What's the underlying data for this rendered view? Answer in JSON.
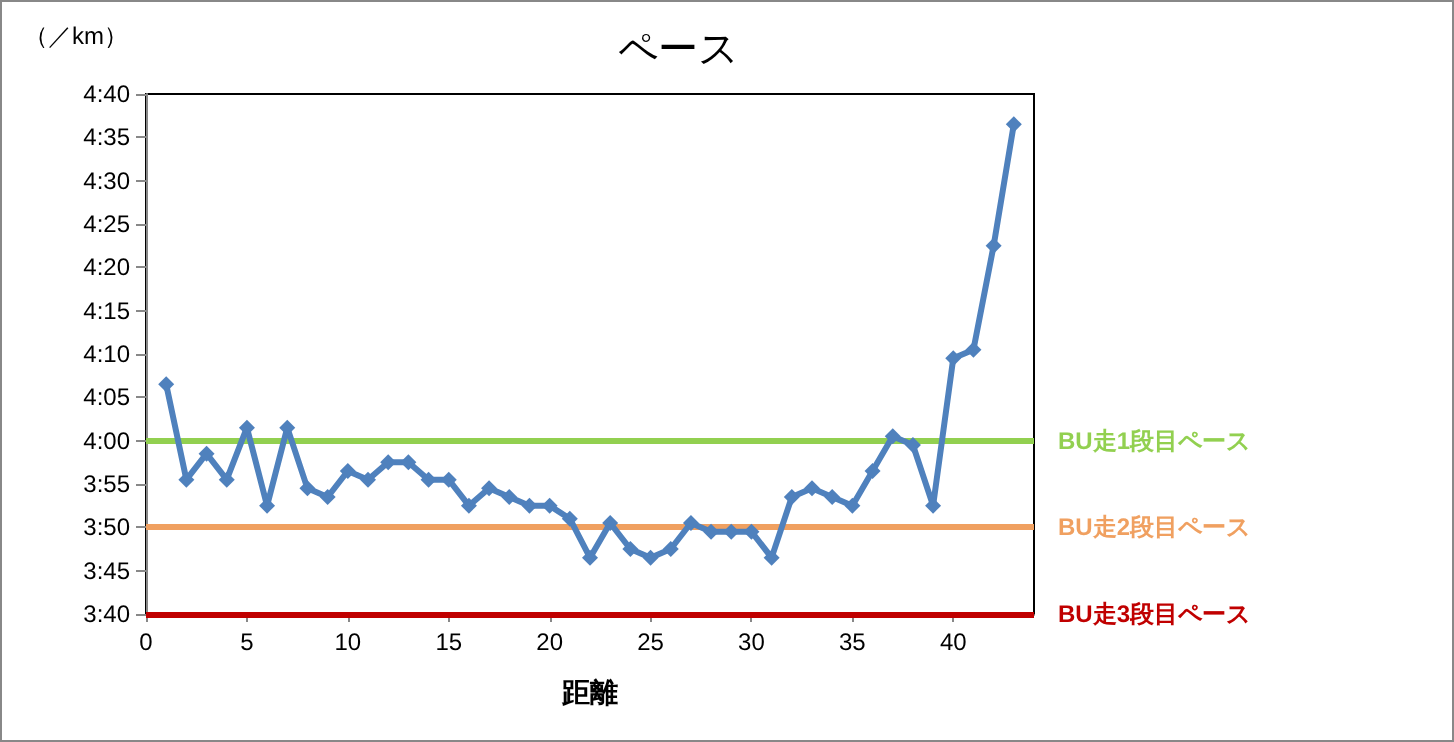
{
  "chart_data": {
    "type": "line",
    "title": "ペース",
    "xlabel": "距離",
    "ylabel": "（／km）",
    "x": [
      1,
      2,
      3,
      4,
      5,
      6,
      7,
      8,
      9,
      10,
      11,
      12,
      13,
      14,
      15,
      16,
      17,
      18,
      19,
      20,
      21,
      22,
      23,
      24,
      25,
      26,
      27,
      28,
      29,
      30,
      31,
      32,
      33,
      34,
      35,
      36,
      37,
      38,
      39,
      40,
      41,
      42,
      43
    ],
    "series": [
      {
        "color": "#4f81bd",
        "values": [
          246.5,
          235.5,
          238.5,
          235.5,
          241.5,
          232.5,
          241.5,
          234.5,
          233.5,
          236.5,
          235.5,
          237.5,
          237.5,
          235.5,
          235.5,
          232.5,
          234.5,
          233.5,
          232.5,
          232.5,
          231,
          226.5,
          230.5,
          227.5,
          226.5,
          227.5,
          230.5,
          229.5,
          229.5,
          229.5,
          226.5,
          233.5,
          234.5,
          233.5,
          232.5,
          236.5,
          240.5,
          239.5,
          232.5,
          249.5,
          250.5,
          262.5,
          276.5
        ]
      }
    ],
    "xlim": [
      0,
      44
    ],
    "xticks": [
      0,
      5,
      10,
      15,
      20,
      25,
      30,
      35,
      40
    ],
    "ylim": [
      220,
      280
    ],
    "yticks": [
      {
        "value": 220,
        "label": "3:40"
      },
      {
        "value": 225,
        "label": "3:45"
      },
      {
        "value": 230,
        "label": "3:50"
      },
      {
        "value": 235,
        "label": "3:55"
      },
      {
        "value": 240,
        "label": "4:00"
      },
      {
        "value": 245,
        "label": "4:05"
      },
      {
        "value": 250,
        "label": "4:10"
      },
      {
        "value": 255,
        "label": "4:15"
      },
      {
        "value": 260,
        "label": "4:20"
      },
      {
        "value": 265,
        "label": "4:25"
      },
      {
        "value": 270,
        "label": "4:30"
      },
      {
        "value": 275,
        "label": "4:35"
      },
      {
        "value": 280,
        "label": "4:40"
      }
    ],
    "ref_lines": [
      {
        "axis": "y",
        "value": 240,
        "label": "BU走1段目ペース",
        "color": "#92d050"
      },
      {
        "axis": "y",
        "value": 230,
        "label": "BU走2段目ペース",
        "color": "#f0a060"
      },
      {
        "axis": "y",
        "value": 220,
        "label": "BU走3段目ペース",
        "color": "#c00000"
      }
    ],
    "grid": false,
    "marker": "diamond",
    "line_style": "solid"
  }
}
